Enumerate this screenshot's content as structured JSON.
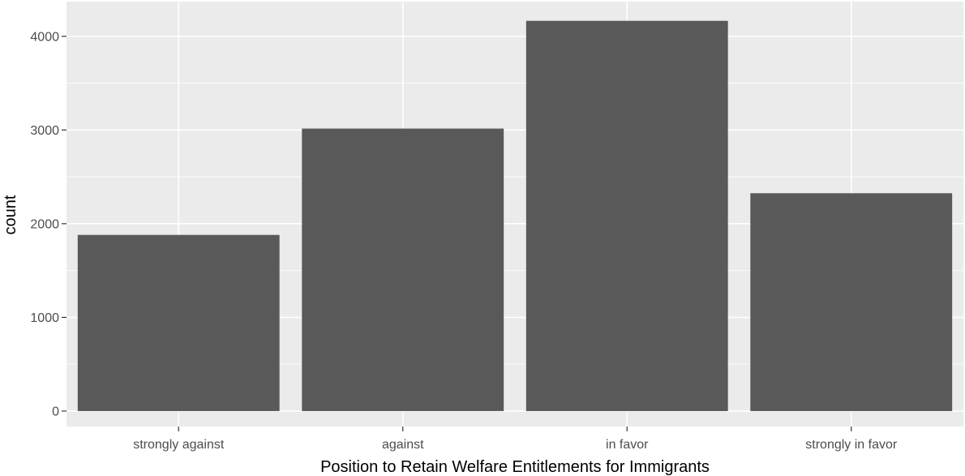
{
  "chart_data": {
    "type": "bar",
    "title": "",
    "xlabel": "Position to Retain Welfare Entitlements for Immigrants",
    "ylabel": "count",
    "categories": [
      "strongly against",
      "against",
      "in favor",
      "strongly in favor"
    ],
    "values": [
      1880,
      3015,
      4165,
      2325
    ],
    "ylim": [
      -165,
      4370
    ],
    "yticks": [
      0,
      1000,
      2000,
      3000,
      4000
    ],
    "ytick_labels": [
      "0",
      "1000",
      "2000",
      "3000",
      "4000"
    ],
    "grid": true,
    "legend": "none",
    "colors": {
      "panel": "#ebebeb",
      "grid": "#ffffff",
      "bar": "#595959",
      "tick": "#333333"
    }
  }
}
